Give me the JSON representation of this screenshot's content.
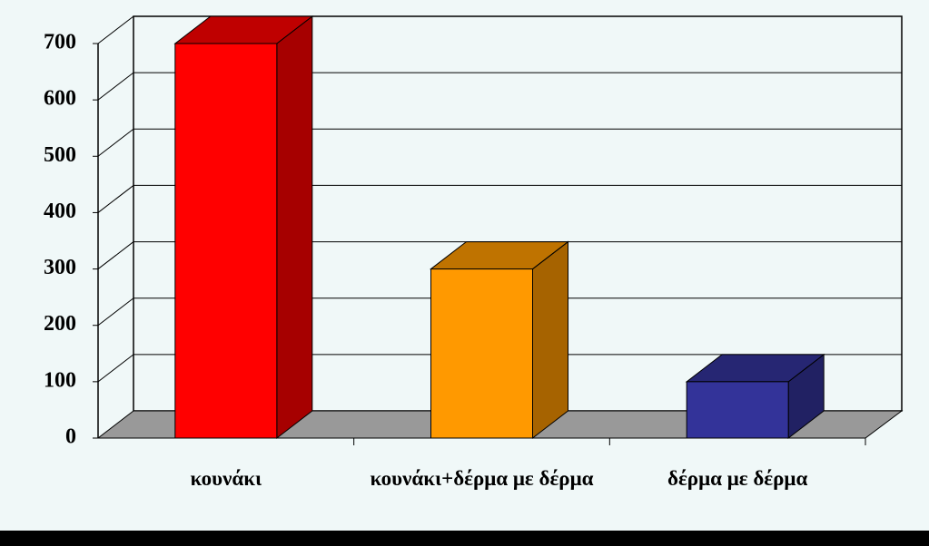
{
  "chart_data": {
    "type": "bar3d",
    "categories": [
      "κουνάκι",
      "κουνάκι+δέρμα με δέρμα",
      "δέρμα με δέρμα"
    ],
    "values": [
      700,
      300,
      100
    ],
    "colors": [
      "#ff0000",
      "#ff9900",
      "#333399"
    ],
    "ylim": [
      0,
      700
    ],
    "yticks": [
      0,
      100,
      200,
      300,
      400,
      500,
      600,
      700
    ],
    "grid": true
  }
}
